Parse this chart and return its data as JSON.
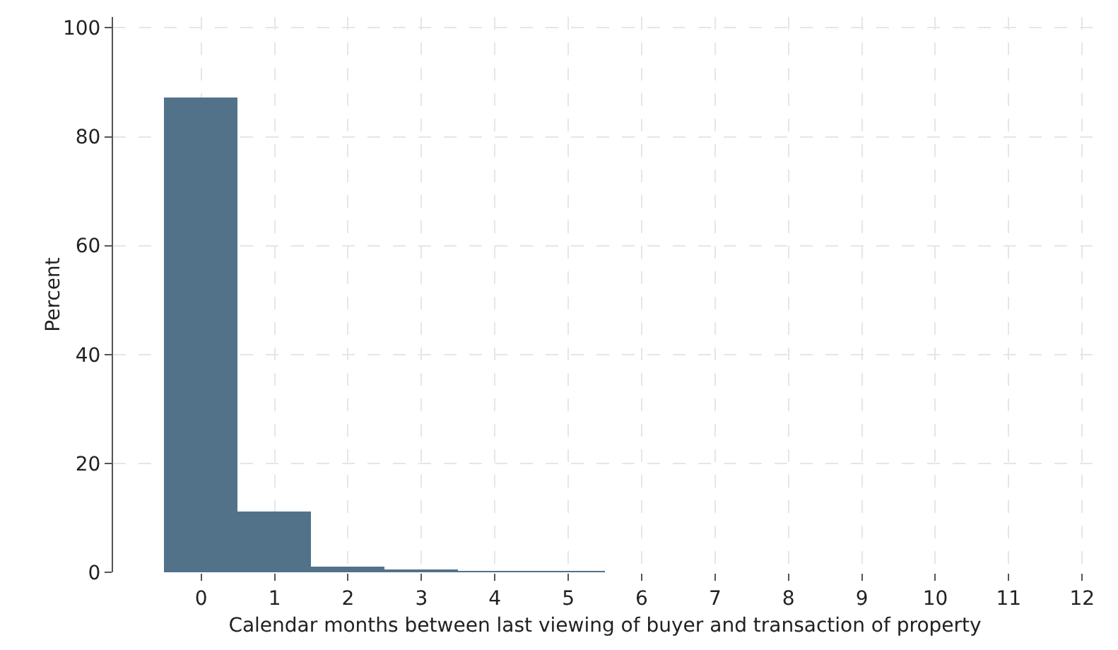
{
  "chart_data": {
    "type": "histogram",
    "xlabel": "Calendar months between last viewing of buyer and transaction of property",
    "ylabel": "Percent",
    "bins": [
      -0.5,
      0.5,
      1.5,
      2.5,
      3.5,
      4.5,
      5.5
    ],
    "values": [
      87.1,
      11.1,
      1.1,
      0.4,
      0.2,
      0.1
    ],
    "color": "#52728a",
    "xlim": [
      -1.2,
      12.2
    ],
    "xticks": [
      0,
      1,
      2,
      3,
      4,
      5,
      6,
      7,
      8,
      9,
      10,
      11,
      12
    ],
    "ylim": [
      0,
      102
    ],
    "yticks": [
      0,
      20,
      40,
      60,
      80,
      100
    ],
    "grid": true
  }
}
